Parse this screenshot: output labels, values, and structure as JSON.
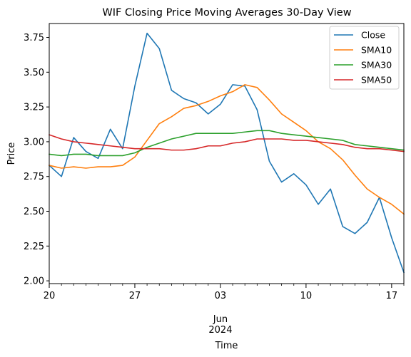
{
  "chart_data": {
    "type": "line",
    "title": "WIF Closing Price Moving Averages 30-Day View",
    "xlabel": "Time",
    "ylabel": "Price",
    "ylim": [
      1.98,
      3.85
    ],
    "xlim": [
      "2024-05-20",
      "2024-06-18"
    ],
    "grid": false,
    "legend_position": "top-right",
    "y_ticks": [
      "2.00",
      "2.25",
      "2.50",
      "2.75",
      "3.00",
      "3.25",
      "3.50",
      "3.75"
    ],
    "x_major_ticks": [
      {
        "date": "2024-05-20",
        "label": "20"
      },
      {
        "date": "2024-05-27",
        "label": "27"
      },
      {
        "date": "2024-06-03",
        "label": "03"
      },
      {
        "date": "2024-06-10",
        "label": "10"
      },
      {
        "date": "2024-06-17",
        "label": "17"
      }
    ],
    "x_month_label": {
      "date": "2024-06-03",
      "month": "Jun",
      "year": "2024"
    },
    "dates": [
      "2024-05-20",
      "2024-05-21",
      "2024-05-22",
      "2024-05-23",
      "2024-05-24",
      "2024-05-25",
      "2024-05-26",
      "2024-05-27",
      "2024-05-28",
      "2024-05-29",
      "2024-05-30",
      "2024-05-31",
      "2024-06-01",
      "2024-06-02",
      "2024-06-03",
      "2024-06-04",
      "2024-06-05",
      "2024-06-06",
      "2024-06-07",
      "2024-06-08",
      "2024-06-09",
      "2024-06-10",
      "2024-06-11",
      "2024-06-12",
      "2024-06-13",
      "2024-06-14",
      "2024-06-15",
      "2024-06-16",
      "2024-06-17",
      "2024-06-18"
    ],
    "series": [
      {
        "name": "Close",
        "color": "#1f77b4",
        "values": [
          2.83,
          2.75,
          3.03,
          2.93,
          2.88,
          3.09,
          2.95,
          3.4,
          3.78,
          3.67,
          3.37,
          3.31,
          3.28,
          3.2,
          3.27,
          3.41,
          3.4,
          3.23,
          2.86,
          2.71,
          2.77,
          2.69,
          2.55,
          2.66,
          2.39,
          2.34,
          2.42,
          2.6,
          2.31,
          2.06
        ]
      },
      {
        "name": "SMA10",
        "color": "#ff7f0e",
        "values": [
          2.83,
          2.81,
          2.82,
          2.81,
          2.82,
          2.82,
          2.83,
          2.89,
          3.01,
          3.13,
          3.18,
          3.24,
          3.26,
          3.29,
          3.33,
          3.36,
          3.41,
          3.39,
          3.3,
          3.2,
          3.14,
          3.08,
          3.0,
          2.95,
          2.87,
          2.76,
          2.66,
          2.6,
          2.55,
          2.48
        ]
      },
      {
        "name": "SMA30",
        "color": "#2ca02c",
        "values": [
          2.91,
          2.9,
          2.91,
          2.91,
          2.9,
          2.9,
          2.9,
          2.92,
          2.96,
          2.99,
          3.02,
          3.04,
          3.06,
          3.06,
          3.06,
          3.06,
          3.07,
          3.08,
          3.08,
          3.06,
          3.05,
          3.04,
          3.03,
          3.02,
          3.01,
          2.98,
          2.97,
          2.96,
          2.95,
          2.94
        ]
      },
      {
        "name": "SMA50",
        "color": "#d62728",
        "values": [
          3.05,
          3.02,
          3.0,
          2.99,
          2.98,
          2.97,
          2.96,
          2.95,
          2.95,
          2.95,
          2.94,
          2.94,
          2.95,
          2.97,
          2.97,
          2.99,
          3.0,
          3.02,
          3.02,
          3.02,
          3.01,
          3.01,
          3.0,
          2.99,
          2.98,
          2.96,
          2.95,
          2.95,
          2.94,
          2.93
        ]
      }
    ]
  }
}
